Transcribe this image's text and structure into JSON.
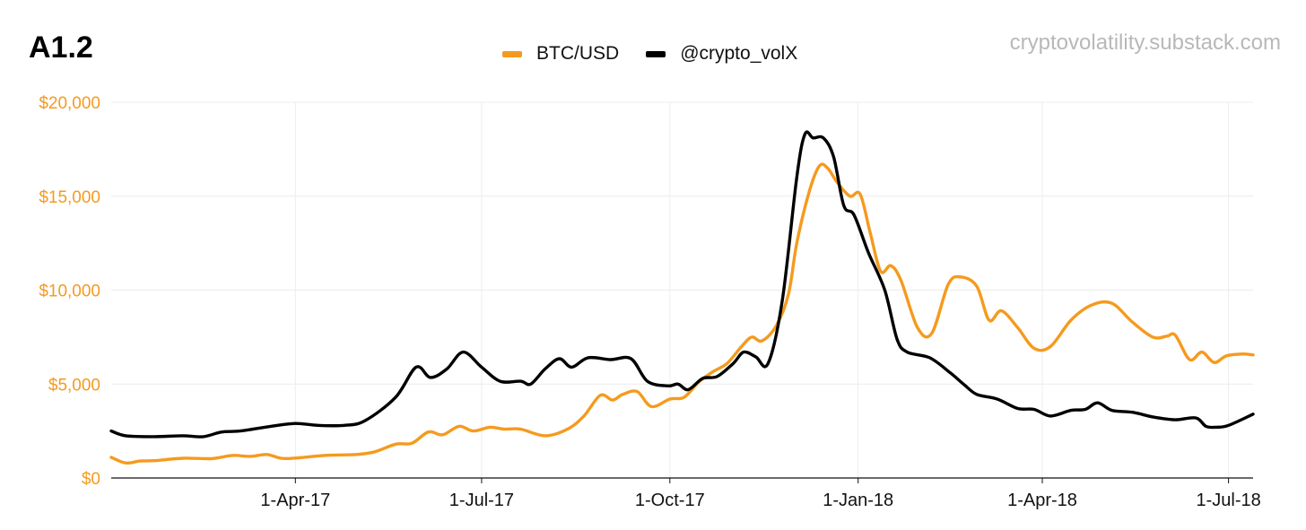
{
  "header": {
    "title": "A1.2",
    "watermark": "cryptovolatility.substack.com"
  },
  "colors": {
    "btc": "#f59a1e",
    "vol": "#000000",
    "grid": "#ececec",
    "axis": "#111111"
  },
  "chart_data": {
    "type": "line",
    "title": "A1.2",
    "xlabel": "",
    "ylabel": "",
    "ylim": [
      0,
      20000
    ],
    "yticks": [
      0,
      5000,
      10000,
      15000,
      20000
    ],
    "ytick_labels": [
      "$0",
      "$5,000",
      "$10,000",
      "$15,000",
      "$20,000"
    ],
    "xlim": [
      "2017-01-01",
      "2018-07-13"
    ],
    "xticks": [
      "2017-04-01",
      "2017-07-01",
      "2017-10-01",
      "2018-01-01",
      "2018-04-01",
      "2018-07-01"
    ],
    "xtick_labels": [
      "1-Apr-17",
      "1-Jul-17",
      "1-Oct-17",
      "1-Jan-18",
      "1-Apr-18",
      "1-Jul-18"
    ],
    "grid": true,
    "legend_position": "top-center",
    "series": [
      {
        "name": "BTC/USD",
        "color": "#f59a1e",
        "points": [
          [
            "2017-01-01",
            1100
          ],
          [
            "2017-01-08",
            800
          ],
          [
            "2017-01-15",
            900
          ],
          [
            "2017-01-22",
            920
          ],
          [
            "2017-02-05",
            1050
          ],
          [
            "2017-02-19",
            1030
          ],
          [
            "2017-03-01",
            1200
          ],
          [
            "2017-03-10",
            1150
          ],
          [
            "2017-03-18",
            1250
          ],
          [
            "2017-03-25",
            1050
          ],
          [
            "2017-04-01",
            1060
          ],
          [
            "2017-04-15",
            1200
          ],
          [
            "2017-05-01",
            1250
          ],
          [
            "2017-05-10",
            1400
          ],
          [
            "2017-05-20",
            1800
          ],
          [
            "2017-05-28",
            1850
          ],
          [
            "2017-06-05",
            2450
          ],
          [
            "2017-06-12",
            2300
          ],
          [
            "2017-06-20",
            2750
          ],
          [
            "2017-06-27",
            2500
          ],
          [
            "2017-07-05",
            2700
          ],
          [
            "2017-07-12",
            2600
          ],
          [
            "2017-07-20",
            2600
          ],
          [
            "2017-08-01",
            2250
          ],
          [
            "2017-08-12",
            2600
          ],
          [
            "2017-08-20",
            3300
          ],
          [
            "2017-08-28",
            4400
          ],
          [
            "2017-09-03",
            4150
          ],
          [
            "2017-09-08",
            4450
          ],
          [
            "2017-09-15",
            4600
          ],
          [
            "2017-09-22",
            3800
          ],
          [
            "2017-10-01",
            4200
          ],
          [
            "2017-10-08",
            4300
          ],
          [
            "2017-10-15",
            5100
          ],
          [
            "2017-10-22",
            5650
          ],
          [
            "2017-10-29",
            6100
          ],
          [
            "2017-11-05",
            7000
          ],
          [
            "2017-11-10",
            7500
          ],
          [
            "2017-11-15",
            7300
          ],
          [
            "2017-11-22",
            8100
          ],
          [
            "2017-11-28",
            9800
          ],
          [
            "2017-12-02",
            12500
          ],
          [
            "2017-12-08",
            15200
          ],
          [
            "2017-12-13",
            16600
          ],
          [
            "2017-12-17",
            16500
          ],
          [
            "2017-12-22",
            15700
          ],
          [
            "2017-12-28",
            15000
          ],
          [
            "2018-01-02",
            15100
          ],
          [
            "2018-01-07",
            13000
          ],
          [
            "2018-01-12",
            11000
          ],
          [
            "2018-01-17",
            11300
          ],
          [
            "2018-01-22",
            10500
          ],
          [
            "2018-01-30",
            8000
          ],
          [
            "2018-02-06",
            7700
          ],
          [
            "2018-02-14",
            10300
          ],
          [
            "2018-02-20",
            10700
          ],
          [
            "2018-02-28",
            10200
          ],
          [
            "2018-03-06",
            8400
          ],
          [
            "2018-03-12",
            8900
          ],
          [
            "2018-03-20",
            8000
          ],
          [
            "2018-03-28",
            6900
          ],
          [
            "2018-04-05",
            7000
          ],
          [
            "2018-04-15",
            8400
          ],
          [
            "2018-04-25",
            9200
          ],
          [
            "2018-05-05",
            9300
          ],
          [
            "2018-05-15",
            8300
          ],
          [
            "2018-05-25",
            7500
          ],
          [
            "2018-06-01",
            7550
          ],
          [
            "2018-06-05",
            7600
          ],
          [
            "2018-06-12",
            6300
          ],
          [
            "2018-06-18",
            6700
          ],
          [
            "2018-06-24",
            6150
          ],
          [
            "2018-06-30",
            6500
          ],
          [
            "2018-07-08",
            6600
          ],
          [
            "2018-07-13",
            6550
          ]
        ]
      },
      {
        "name": "@crypto_volX",
        "color": "#000000",
        "points": [
          [
            "2017-01-01",
            2500
          ],
          [
            "2017-01-08",
            2250
          ],
          [
            "2017-01-22",
            2200
          ],
          [
            "2017-02-05",
            2250
          ],
          [
            "2017-02-15",
            2200
          ],
          [
            "2017-02-24",
            2450
          ],
          [
            "2017-03-05",
            2500
          ],
          [
            "2017-03-20",
            2750
          ],
          [
            "2017-04-01",
            2900
          ],
          [
            "2017-04-12",
            2800
          ],
          [
            "2017-04-25",
            2800
          ],
          [
            "2017-05-05",
            3050
          ],
          [
            "2017-05-20",
            4300
          ],
          [
            "2017-05-30",
            5900
          ],
          [
            "2017-06-06",
            5350
          ],
          [
            "2017-06-14",
            5800
          ],
          [
            "2017-06-22",
            6700
          ],
          [
            "2017-07-01",
            5900
          ],
          [
            "2017-07-10",
            5150
          ],
          [
            "2017-07-20",
            5150
          ],
          [
            "2017-07-25",
            5000
          ],
          [
            "2017-08-01",
            5800
          ],
          [
            "2017-08-08",
            6350
          ],
          [
            "2017-08-14",
            5900
          ],
          [
            "2017-08-22",
            6400
          ],
          [
            "2017-09-02",
            6300
          ],
          [
            "2017-09-12",
            6350
          ],
          [
            "2017-09-20",
            5150
          ],
          [
            "2017-09-30",
            4900
          ],
          [
            "2017-10-05",
            5000
          ],
          [
            "2017-10-10",
            4700
          ],
          [
            "2017-10-17",
            5300
          ],
          [
            "2017-10-24",
            5400
          ],
          [
            "2017-11-01",
            6100
          ],
          [
            "2017-11-06",
            6700
          ],
          [
            "2017-11-12",
            6450
          ],
          [
            "2017-11-18",
            6100
          ],
          [
            "2017-11-25",
            9500
          ],
          [
            "2017-12-02",
            16000
          ],
          [
            "2017-12-06",
            18300
          ],
          [
            "2017-12-10",
            18100
          ],
          [
            "2017-12-15",
            18100
          ],
          [
            "2017-12-20",
            17100
          ],
          [
            "2017-12-25",
            14500
          ],
          [
            "2017-12-30",
            14000
          ],
          [
            "2018-01-06",
            12000
          ],
          [
            "2018-01-14",
            10000
          ],
          [
            "2018-01-20",
            7400
          ],
          [
            "2018-01-25",
            6700
          ],
          [
            "2018-02-05",
            6400
          ],
          [
            "2018-02-15",
            5600
          ],
          [
            "2018-02-22",
            4950
          ],
          [
            "2018-02-28",
            4450
          ],
          [
            "2018-03-10",
            4200
          ],
          [
            "2018-03-20",
            3700
          ],
          [
            "2018-03-28",
            3650
          ],
          [
            "2018-04-05",
            3300
          ],
          [
            "2018-04-15",
            3600
          ],
          [
            "2018-04-22",
            3650
          ],
          [
            "2018-04-28",
            4000
          ],
          [
            "2018-05-05",
            3600
          ],
          [
            "2018-05-15",
            3500
          ],
          [
            "2018-05-25",
            3250
          ],
          [
            "2018-06-05",
            3100
          ],
          [
            "2018-06-15",
            3200
          ],
          [
            "2018-06-20",
            2750
          ],
          [
            "2018-06-25",
            2700
          ],
          [
            "2018-07-01",
            2800
          ],
          [
            "2018-07-13",
            3400
          ]
        ]
      }
    ]
  }
}
